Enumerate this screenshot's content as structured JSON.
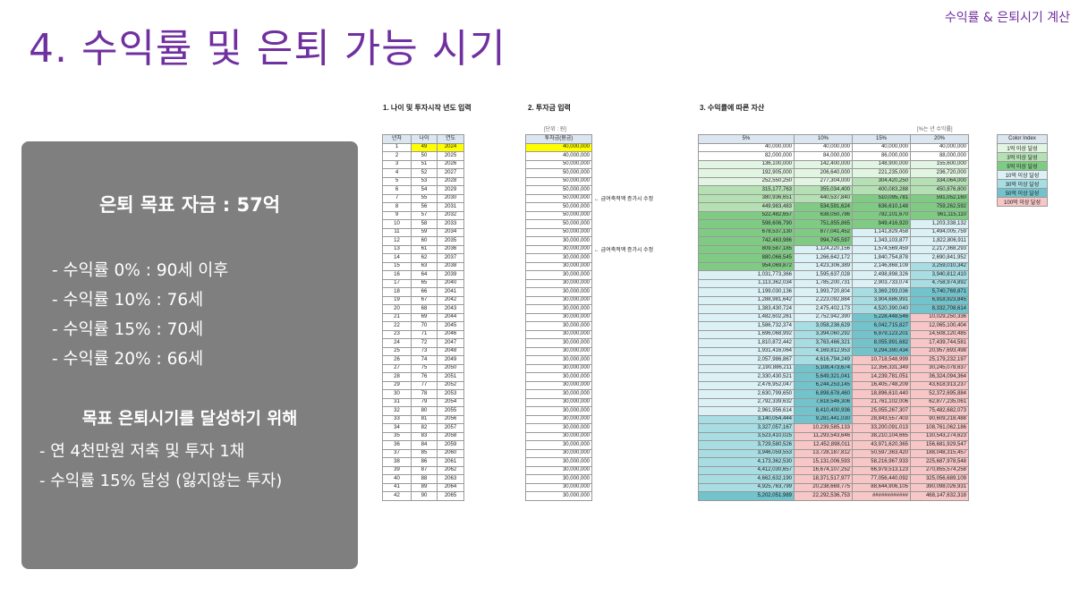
{
  "header": {
    "tag": "수익률 & 은퇴시기 계산",
    "title": "4. 수익률 및 은퇴 가능 시기"
  },
  "summary": {
    "goal": "은퇴 목표 자금 : 57억",
    "rates": [
      "- 수익률   0% : 90세 이후",
      "- 수익률 10% : 76세",
      "- 수익률 15% : 70세",
      "- 수익률 20% : 66세"
    ],
    "sub_title": "목표 은퇴시기를 달성하기 위해",
    "bullets": [
      "- 연 4천만원 저축 및 투자 1채",
      "- 수익률 15% 달성 (잃지않는 투자)"
    ]
  },
  "sheet": {
    "section1": "1. 나이 및 투자시작 년도 입력",
    "section2": "2. 투자금 입력",
    "section3": "3. 수익률에 따른 자산",
    "unit_note": "[단위 : 원]",
    "rate_note": "[%는 년 수익률]",
    "age_headers": [
      "년차",
      "나이",
      "연도"
    ],
    "invest_header": "투자금(원금)",
    "asset_headers": [
      "5%",
      "10%",
      "15%",
      "20%"
    ],
    "notes": [
      "← 급여축적액 증가시 수정",
      "← 급여축적액 증가시 수정"
    ],
    "rows": [
      [
        1,
        49,
        2024,
        "40,000,000",
        "40,000,000",
        "40,000,000",
        "40,000,000",
        "40,000,000"
      ],
      [
        2,
        50,
        2025,
        "40,000,000",
        "82,000,000",
        "84,000,000",
        "86,000,000",
        "88,000,000"
      ],
      [
        3,
        51,
        2026,
        "50,000,000",
        "136,100,000",
        "142,400,000",
        "148,900,000",
        "155,600,000"
      ],
      [
        4,
        52,
        2027,
        "50,000,000",
        "192,905,000",
        "206,640,000",
        "221,235,000",
        "236,720,000"
      ],
      [
        5,
        53,
        2028,
        "50,000,000",
        "252,550,250",
        "277,304,000",
        "304,420,250",
        "334,064,000"
      ],
      [
        6,
        54,
        2029,
        "50,000,000",
        "315,177,763",
        "355,034,400",
        "400,083,288",
        "450,876,800"
      ],
      [
        7,
        55,
        2030,
        "50,000,000",
        "380,936,651",
        "440,537,840",
        "510,095,781",
        "591,052,160"
      ],
      [
        8,
        56,
        2031,
        "50,000,000",
        "449,983,483",
        "534,591,624",
        "636,610,148",
        "759,262,592"
      ],
      [
        9,
        57,
        2032,
        "50,000,000",
        "522,482,657",
        "638,050,786",
        "782,101,670",
        "961,115,110"
      ],
      [
        10,
        58,
        2033,
        "50,000,000",
        "598,606,790",
        "751,855,865",
        "949,416,920",
        "1,203,338,132"
      ],
      [
        11,
        59,
        2034,
        "50,000,000",
        "678,537,130",
        "877,041,452",
        "1,141,829,458",
        "1,494,005,759"
      ],
      [
        12,
        60,
        2035,
        "30,000,000",
        "742,463,986",
        "994,745,597",
        "1,343,103,877",
        "1,822,806,911"
      ],
      [
        13,
        61,
        2036,
        "30,000,000",
        "809,587,185",
        "1,124,220,156",
        "1,574,569,459",
        "2,217,368,293"
      ],
      [
        14,
        62,
        2037,
        "30,000,000",
        "880,066,545",
        "1,266,642,172",
        "1,840,754,878",
        "2,690,841,952"
      ],
      [
        15,
        63,
        2038,
        "30,000,000",
        "954,069,872",
        "1,423,306,389",
        "2,146,868,109",
        "3,259,010,342"
      ],
      [
        16,
        64,
        2039,
        "30,000,000",
        "1,031,773,366",
        "1,595,637,028",
        "2,498,898,326",
        "3,940,812,410"
      ],
      [
        17,
        65,
        2040,
        "30,000,000",
        "1,113,362,034",
        "1,785,200,731",
        "2,903,733,074",
        "4,758,974,892"
      ],
      [
        18,
        66,
        2041,
        "30,000,000",
        "1,199,030,136",
        "1,993,720,804",
        "3,369,293,036",
        "5,740,769,871"
      ],
      [
        19,
        67,
        2042,
        "30,000,000",
        "1,288,981,642",
        "2,223,092,884",
        "3,904,686,991",
        "6,918,923,845"
      ],
      [
        20,
        68,
        2043,
        "30,000,000",
        "1,383,430,724",
        "2,475,402,173",
        "4,520,390,040",
        "8,332,708,614"
      ],
      [
        21,
        69,
        2044,
        "30,000,000",
        "1,482,602,261",
        "2,752,942,390",
        "5,228,448,546",
        "10,029,250,336"
      ],
      [
        22,
        70,
        2045,
        "30,000,000",
        "1,586,732,374",
        "3,058,236,629",
        "6,042,715,827",
        "12,065,100,404"
      ],
      [
        23,
        71,
        2046,
        "30,000,000",
        "1,696,068,992",
        "3,394,060,292",
        "6,979,123,201",
        "14,508,120,485"
      ],
      [
        24,
        72,
        2047,
        "30,000,000",
        "1,810,872,442",
        "3,763,466,321",
        "8,055,991,682",
        "17,439,744,581"
      ],
      [
        25,
        73,
        2048,
        "30,000,000",
        "1,931,416,064",
        "4,169,812,953",
        "9,294,390,434",
        "20,957,693,498"
      ],
      [
        26,
        74,
        2049,
        "30,000,000",
        "2,057,986,867",
        "4,616,794,249",
        "10,718,548,999",
        "25,179,232,197"
      ],
      [
        27,
        75,
        2050,
        "30,000,000",
        "2,190,886,211",
        "5,108,473,674",
        "12,356,331,349",
        "30,245,078,637"
      ],
      [
        28,
        76,
        2051,
        "30,000,000",
        "2,330,430,521",
        "5,649,321,041",
        "14,239,781,051",
        "36,324,094,364"
      ],
      [
        29,
        77,
        2052,
        "30,000,000",
        "2,476,952,047",
        "6,244,253,145",
        "16,405,748,209",
        "43,618,913,237"
      ],
      [
        30,
        78,
        2053,
        "30,000,000",
        "2,630,799,650",
        "6,898,678,460",
        "18,896,610,440",
        "52,372,695,884"
      ],
      [
        31,
        79,
        2054,
        "30,000,000",
        "2,792,339,632",
        "7,618,546,306",
        "21,761,102,006",
        "62,877,235,061"
      ],
      [
        32,
        80,
        2055,
        "30,000,000",
        "2,961,956,614",
        "8,410,400,936",
        "25,055,267,307",
        "75,482,682,073"
      ],
      [
        33,
        81,
        2056,
        "30,000,000",
        "3,140,054,444",
        "9,281,441,030",
        "28,843,557,403",
        "90,609,218,488"
      ],
      [
        34,
        82,
        2057,
        "30,000,000",
        "3,327,057,167",
        "10,239,585,133",
        "33,200,091,013",
        "108,761,062,186"
      ],
      [
        35,
        83,
        2058,
        "30,000,000",
        "3,523,410,025",
        "11,293,543,646",
        "38,210,104,665",
        "130,543,274,623"
      ],
      [
        36,
        84,
        2059,
        "30,000,000",
        "3,729,580,526",
        "12,452,898,011",
        "43,971,620,365",
        "156,681,929,547"
      ],
      [
        37,
        85,
        2060,
        "30,000,000",
        "3,946,059,553",
        "13,728,187,812",
        "50,597,363,420",
        "188,048,315,457"
      ],
      [
        38,
        86,
        2061,
        "30,000,000",
        "4,173,362,530",
        "15,131,006,593",
        "58,216,967,933",
        "225,687,978,548"
      ],
      [
        39,
        87,
        2062,
        "30,000,000",
        "4,412,030,657",
        "16,674,107,252",
        "66,979,513,123",
        "270,855,574,258"
      ],
      [
        40,
        88,
        2063,
        "30,000,000",
        "4,662,632,190",
        "18,371,517,977",
        "77,056,440,092",
        "325,056,689,109"
      ],
      [
        41,
        89,
        2064,
        "30,000,000",
        "4,925,763,799",
        "20,238,669,775",
        "88,644,906,105",
        "390,098,026,931"
      ],
      [
        42,
        90,
        2065,
        "30,000,000",
        "5,202,051,989",
        "22,292,536,753",
        "############",
        "468,147,632,318"
      ]
    ],
    "legend_header": "Color Index",
    "legend": [
      {
        "label": "1억 이상 달성",
        "color": "#e2f4e2"
      },
      {
        "label": "3억 이상 달성",
        "color": "#b4e0b4"
      },
      {
        "label": "5억 이상 달성",
        "color": "#7fcb84"
      },
      {
        "label": "10억 이상 달성",
        "color": "#dcf1f5"
      },
      {
        "label": "30억 이상 달성",
        "color": "#a7dde3"
      },
      {
        "label": "50억 이상 달성",
        "color": "#72c3cc"
      },
      {
        "label": "100억 이상 달성",
        "color": "#f7c6c6"
      }
    ],
    "highlight_color": "#ffff00"
  }
}
